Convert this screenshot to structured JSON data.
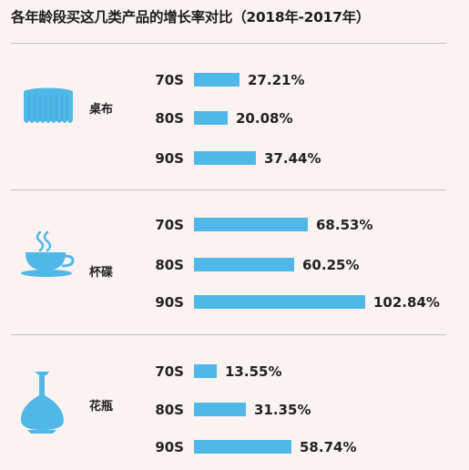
{
  "title": "各年龄段买这几类产品的增长率对比（2018年-2017年）",
  "colors": {
    "bar": "#4fb8e8",
    "background": "#fbf3f2",
    "divider": "#c9bfbe"
  },
  "chart_data": {
    "type": "bar",
    "orientation": "horizontal",
    "title": "各年龄段买这几类产品的增长率对比（2018年-2017年）",
    "unit": "%",
    "groups": [
      {
        "category": "桌布",
        "icon": "tablecloth-icon",
        "rows": [
          {
            "age": "70S",
            "value": 27.21,
            "label": "27.21%"
          },
          {
            "age": "80S",
            "value": 20.08,
            "label": "20.08%"
          },
          {
            "age": "90S",
            "value": 37.44,
            "label": "37.44%"
          }
        ]
      },
      {
        "category": "杯碟",
        "icon": "teacup-icon",
        "rows": [
          {
            "age": "70S",
            "value": 68.53,
            "label": "68.53%"
          },
          {
            "age": "80S",
            "value": 60.25,
            "label": "60.25%"
          },
          {
            "age": "90S",
            "value": 102.84,
            "label": "102.84%"
          }
        ]
      },
      {
        "category": "花瓶",
        "icon": "vase-icon",
        "rows": [
          {
            "age": "70S",
            "value": 13.55,
            "label": "13.55%"
          },
          {
            "age": "80S",
            "value": 31.35,
            "label": "31.35%"
          },
          {
            "age": "90S",
            "value": 58.74,
            "label": "58.74%"
          }
        ]
      }
    ]
  }
}
